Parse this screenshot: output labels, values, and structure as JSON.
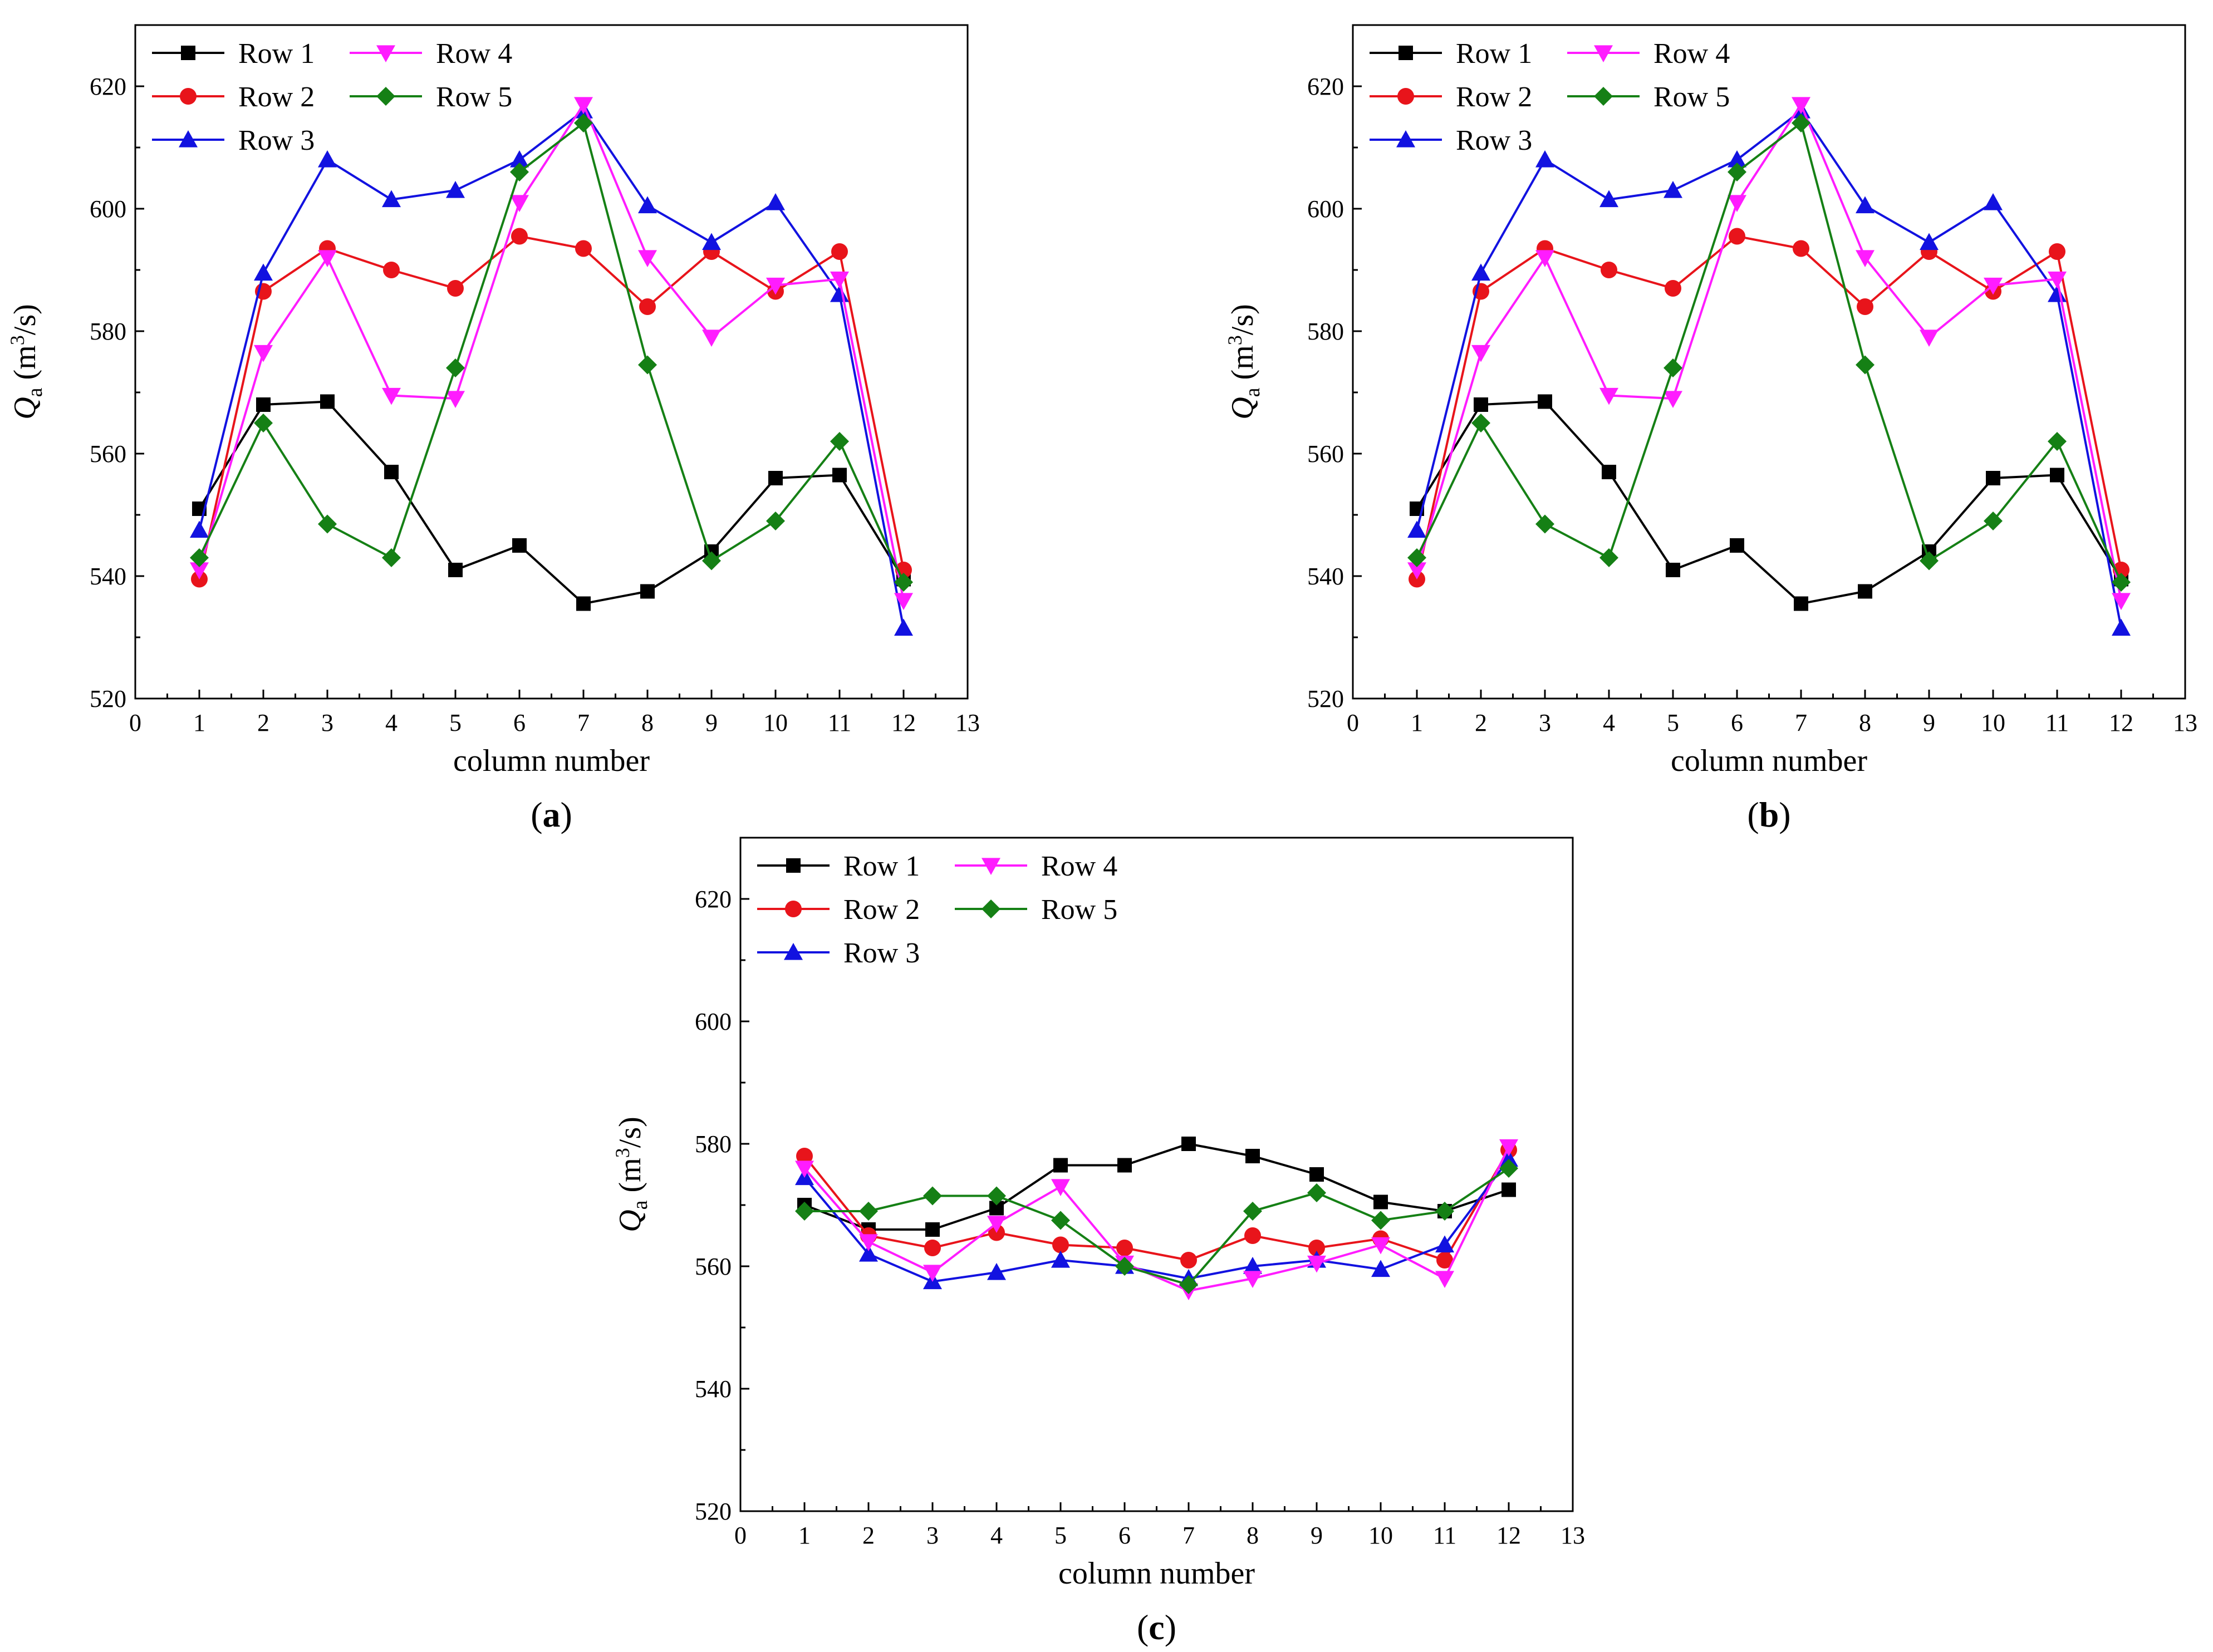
{
  "colors": {
    "row1": "#000000",
    "row2": "#e8141b",
    "row3": "#1212e0",
    "row4": "#ff1cff",
    "row5": "#158015"
  },
  "chart_data": [
    {
      "type": "line",
      "panel_label": "a",
      "xlabel": "column number",
      "ylabel_symbol": "Q",
      "ylabel_subscript": "a",
      "ylabel_unit_open": " (m",
      "ylabel_unit_sup": "3",
      "ylabel_unit_close": "/s)",
      "xlim": [
        0,
        13
      ],
      "ylim": [
        520,
        630
      ],
      "xticks": [
        0,
        1,
        2,
        3,
        4,
        5,
        6,
        7,
        8,
        9,
        10,
        11,
        12,
        13
      ],
      "yticks": [
        520,
        540,
        560,
        580,
        600,
        620
      ],
      "x": [
        1,
        2,
        3,
        4,
        5,
        6,
        7,
        8,
        9,
        10,
        11,
        12
      ],
      "series": [
        {
          "name": "Row 1",
          "marker": "square",
          "values": [
            551,
            568,
            568.5,
            557,
            541,
            545,
            535.5,
            537.5,
            544,
            556,
            556.5,
            539.5
          ]
        },
        {
          "name": "Row 2",
          "marker": "circle",
          "values": [
            539.5,
            586.5,
            593.5,
            590,
            587,
            595.5,
            593.5,
            584,
            593,
            586.5,
            593,
            541
          ]
        },
        {
          "name": "Row 3",
          "marker": "triangle-up",
          "values": [
            547.5,
            589.5,
            608,
            601.5,
            603,
            608,
            616,
            600.5,
            594.5,
            601,
            586,
            531.5
          ]
        },
        {
          "name": "Row 4",
          "marker": "triangle-down",
          "values": [
            541,
            576.5,
            592,
            569.5,
            569,
            601,
            617,
            592,
            579,
            587.5,
            588.5,
            536
          ]
        },
        {
          "name": "Row 5",
          "marker": "diamond",
          "values": [
            543,
            565,
            548.5,
            543,
            574,
            606,
            614,
            574.5,
            542.5,
            549,
            562,
            539
          ]
        }
      ]
    },
    {
      "type": "line",
      "panel_label": "b",
      "xlabel": "column number",
      "ylabel_symbol": "Q",
      "ylabel_subscript": "a",
      "ylabel_unit_open": " (m",
      "ylabel_unit_sup": "3",
      "ylabel_unit_close": "/s)",
      "xlim": [
        0,
        13
      ],
      "ylim": [
        520,
        630
      ],
      "xticks": [
        0,
        1,
        2,
        3,
        4,
        5,
        6,
        7,
        8,
        9,
        10,
        11,
        12,
        13
      ],
      "yticks": [
        520,
        540,
        560,
        580,
        600,
        620
      ],
      "x": [
        1,
        2,
        3,
        4,
        5,
        6,
        7,
        8,
        9,
        10,
        11,
        12
      ],
      "series": [
        {
          "name": "Row 1",
          "marker": "square",
          "values": [
            551,
            568,
            568.5,
            557,
            541,
            545,
            535.5,
            537.5,
            544,
            556,
            556.5,
            539.5
          ]
        },
        {
          "name": "Row 2",
          "marker": "circle",
          "values": [
            539.5,
            586.5,
            593.5,
            590,
            587,
            595.5,
            593.5,
            584,
            593,
            586.5,
            593,
            541
          ]
        },
        {
          "name": "Row 3",
          "marker": "triangle-up",
          "values": [
            547.5,
            589.5,
            608,
            601.5,
            603,
            608,
            616,
            600.5,
            594.5,
            601,
            586,
            531.5
          ]
        },
        {
          "name": "Row 4",
          "marker": "triangle-down",
          "values": [
            541,
            576.5,
            592,
            569.5,
            569,
            601,
            617,
            592,
            579,
            587.5,
            588.5,
            536
          ]
        },
        {
          "name": "Row 5",
          "marker": "diamond",
          "values": [
            543,
            565,
            548.5,
            543,
            574,
            606,
            614,
            574.5,
            542.5,
            549,
            562,
            539
          ]
        }
      ]
    },
    {
      "type": "line",
      "panel_label": "c",
      "xlabel": "column number",
      "ylabel_symbol": "Q",
      "ylabel_subscript": "a",
      "ylabel_unit_open": " (m",
      "ylabel_unit_sup": "3",
      "ylabel_unit_close": "/s)",
      "xlim": [
        0,
        13
      ],
      "ylim": [
        520,
        630
      ],
      "xticks": [
        0,
        1,
        2,
        3,
        4,
        5,
        6,
        7,
        8,
        9,
        10,
        11,
        12,
        13
      ],
      "yticks": [
        520,
        540,
        560,
        580,
        600,
        620
      ],
      "x": [
        1,
        2,
        3,
        4,
        5,
        6,
        7,
        8,
        9,
        10,
        11,
        12
      ],
      "series": [
        {
          "name": "Row 1",
          "marker": "square",
          "values": [
            570,
            566,
            566,
            569.5,
            576.5,
            576.5,
            580,
            578,
            575,
            570.5,
            569,
            572.5
          ]
        },
        {
          "name": "Row 2",
          "marker": "circle",
          "values": [
            578,
            565,
            563,
            565.5,
            563.5,
            563,
            561,
            565,
            563,
            564.5,
            561,
            579
          ]
        },
        {
          "name": "Row 3",
          "marker": "triangle-up",
          "values": [
            574.5,
            562,
            557.5,
            559,
            561,
            560,
            558,
            560,
            561,
            559.5,
            563.5,
            577.5
          ]
        },
        {
          "name": "Row 4",
          "marker": "triangle-down",
          "values": [
            576,
            564,
            559,
            567,
            573,
            560.5,
            556,
            558,
            560.5,
            563.5,
            558,
            579.5
          ]
        },
        {
          "name": "Row 5",
          "marker": "diamond",
          "values": [
            569,
            569,
            571.5,
            571.5,
            567.5,
            560,
            557,
            569,
            572,
            567.5,
            569,
            576
          ]
        }
      ]
    }
  ]
}
